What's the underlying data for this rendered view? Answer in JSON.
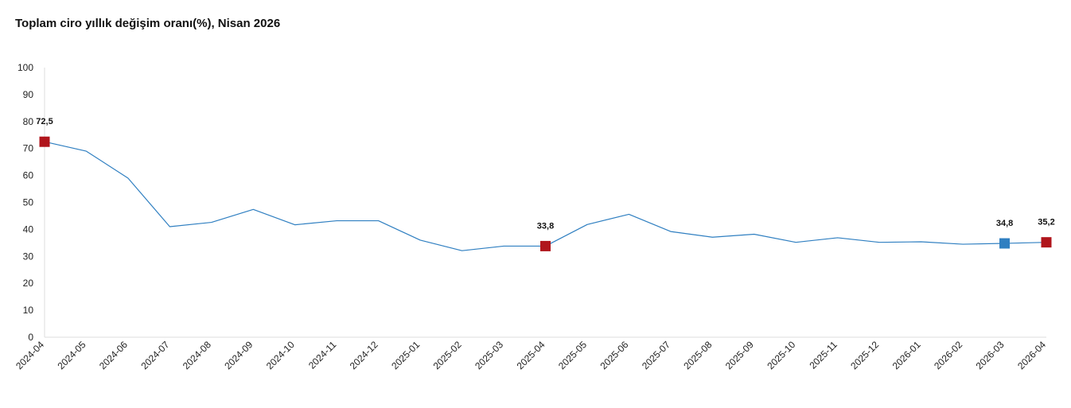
{
  "chart_data": {
    "type": "line",
    "title": "Toplam ciro yıllık değişim oranı(%), Nisan 2026",
    "xlabel": "",
    "ylabel": "",
    "ylim": [
      0,
      100
    ],
    "yticks": [
      "0",
      "10",
      "20",
      "30",
      "40",
      "50",
      "60",
      "70",
      "80",
      "90",
      "100"
    ],
    "categories": [
      "2024-04",
      "2024-05",
      "2024-06",
      "2024-07",
      "2024-08",
      "2024-09",
      "2024-10",
      "2024-11",
      "2024-12",
      "2025-01",
      "2025-02",
      "2025-03",
      "2025-04",
      "2025-05",
      "2025-06",
      "2025-07",
      "2025-08",
      "2025-09",
      "2025-10",
      "2025-11",
      "2025-12",
      "2026-01",
      "2026-02",
      "2026-03",
      "2026-04"
    ],
    "series": [
      {
        "values": [
          72.5,
          69.0,
          59.0,
          41.0,
          42.6,
          47.4,
          41.7,
          43.2,
          43.2,
          36.0,
          32.1,
          33.8,
          33.8,
          41.8,
          45.6,
          39.2,
          37.1,
          38.2,
          35.2,
          36.9,
          35.2,
          35.4,
          34.5,
          34.8,
          35.2
        ]
      }
    ],
    "highlighted_points": [
      {
        "index": 0,
        "label": "72,5",
        "color": "#b0151c"
      },
      {
        "index": 12,
        "label": "33,8",
        "color": "#b0151c"
      },
      {
        "index": 23,
        "label": "34,8",
        "color": "#2f7fc1"
      },
      {
        "index": 24,
        "label": "35,2",
        "color": "#b0151c"
      }
    ],
    "line_color": "#2f7fc1",
    "axis_color": "#dddddd",
    "grid": false
  }
}
